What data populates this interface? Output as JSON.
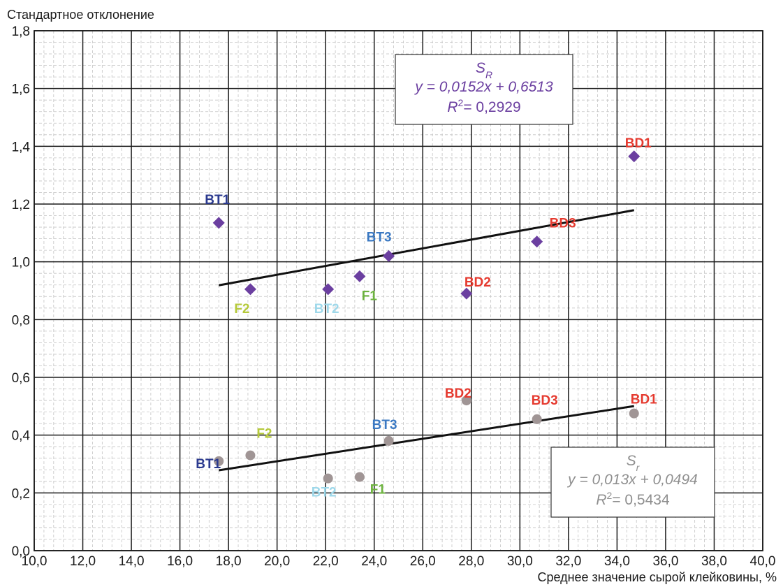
{
  "chart_data": {
    "type": "scatter",
    "title": "",
    "ylabel": "Стандартное отклонение",
    "xlabel": "Среднее значение сырой клейковины, %",
    "xlim": [
      10,
      40
    ],
    "ylim": [
      0,
      1.8
    ],
    "x_ticks": [
      10,
      12,
      14,
      16,
      18,
      20,
      22,
      24,
      26,
      28,
      30,
      32,
      34,
      36,
      38,
      40
    ],
    "y_ticks": [
      0,
      0.2,
      0.4,
      0.6,
      0.8,
      1.0,
      1.2,
      1.4,
      1.6,
      1.8
    ],
    "x_tick_labels": [
      "10,0",
      "12,0",
      "14,0",
      "16,0",
      "18,0",
      "20,0",
      "22,0",
      "24,0",
      "26,0",
      "28,0",
      "30,0",
      "32,0",
      "34,0",
      "36,0",
      "38,0",
      "40,0"
    ],
    "y_tick_labels": [
      "0,0",
      "0,2",
      "0,4",
      "0,6",
      "0,8",
      "1,0",
      "1,2",
      "1,4",
      "1,6",
      "1,8"
    ],
    "grid": true,
    "series": [
      {
        "name": "S_R",
        "marker": "diamond",
        "color": "#6b3fa0",
        "points": [
          {
            "label": "BT1",
            "x": 17.6,
            "y": 1.135,
            "label_color": "#2b3a8f"
          },
          {
            "label": "F2",
            "x": 18.9,
            "y": 0.905,
            "label_color": "#b5c93a"
          },
          {
            "label": "BT2",
            "x": 22.1,
            "y": 0.905,
            "label_color": "#9ed8ea"
          },
          {
            "label": "F1",
            "x": 23.4,
            "y": 0.95,
            "label_color": "#6db33f"
          },
          {
            "label": "BT3",
            "x": 24.6,
            "y": 1.02,
            "label_color": "#3a78c2"
          },
          {
            "label": "BD2",
            "x": 27.8,
            "y": 0.89,
            "label_color": "#e53a2f"
          },
          {
            "label": "BD3",
            "x": 30.7,
            "y": 1.07,
            "label_color": "#e53a2f"
          },
          {
            "label": "BD1",
            "x": 34.7,
            "y": 1.365,
            "label_color": "#e53a2f"
          }
        ],
        "trendline": {
          "slope": 0.0152,
          "intercept": 0.6513,
          "x_range": [
            17.6,
            34.7
          ],
          "color": "#111111"
        },
        "equation": {
          "symbol": "S",
          "subscript": "R",
          "formula": "y = 0,0152x + 0,6513",
          "r2_label": "R",
          "r2_value": "= 0,2929",
          "color": "#6b3fa0"
        }
      },
      {
        "name": "S_r",
        "marker": "circle",
        "color": "#a09595",
        "points": [
          {
            "label": "BT1",
            "x": 17.6,
            "y": 0.31,
            "label_color": "#2b3a8f"
          },
          {
            "label": "F2",
            "x": 18.9,
            "y": 0.33,
            "label_color": "#b5c93a"
          },
          {
            "label": "BT2",
            "x": 22.1,
            "y": 0.25,
            "label_color": "#9ed8ea"
          },
          {
            "label": "F1",
            "x": 23.4,
            "y": 0.255,
            "label_color": "#6db33f"
          },
          {
            "label": "BT3",
            "x": 24.6,
            "y": 0.38,
            "label_color": "#3a78c2"
          },
          {
            "label": "BD2",
            "x": 27.8,
            "y": 0.52,
            "label_color": "#e53a2f"
          },
          {
            "label": "BD3",
            "x": 30.7,
            "y": 0.455,
            "label_color": "#e53a2f"
          },
          {
            "label": "BD1",
            "x": 34.7,
            "y": 0.475,
            "label_color": "#e53a2f"
          }
        ],
        "trendline": {
          "slope": 0.013,
          "intercept": 0.0494,
          "x_range": [
            17.6,
            34.7
          ],
          "color": "#111111"
        },
        "equation": {
          "symbol": "S",
          "subscript": "r",
          "formula": "y = 0,013x + 0,0494",
          "r2_label": "R",
          "r2_value": "= 0,5434",
          "color": "#8f8f8f"
        }
      }
    ]
  }
}
